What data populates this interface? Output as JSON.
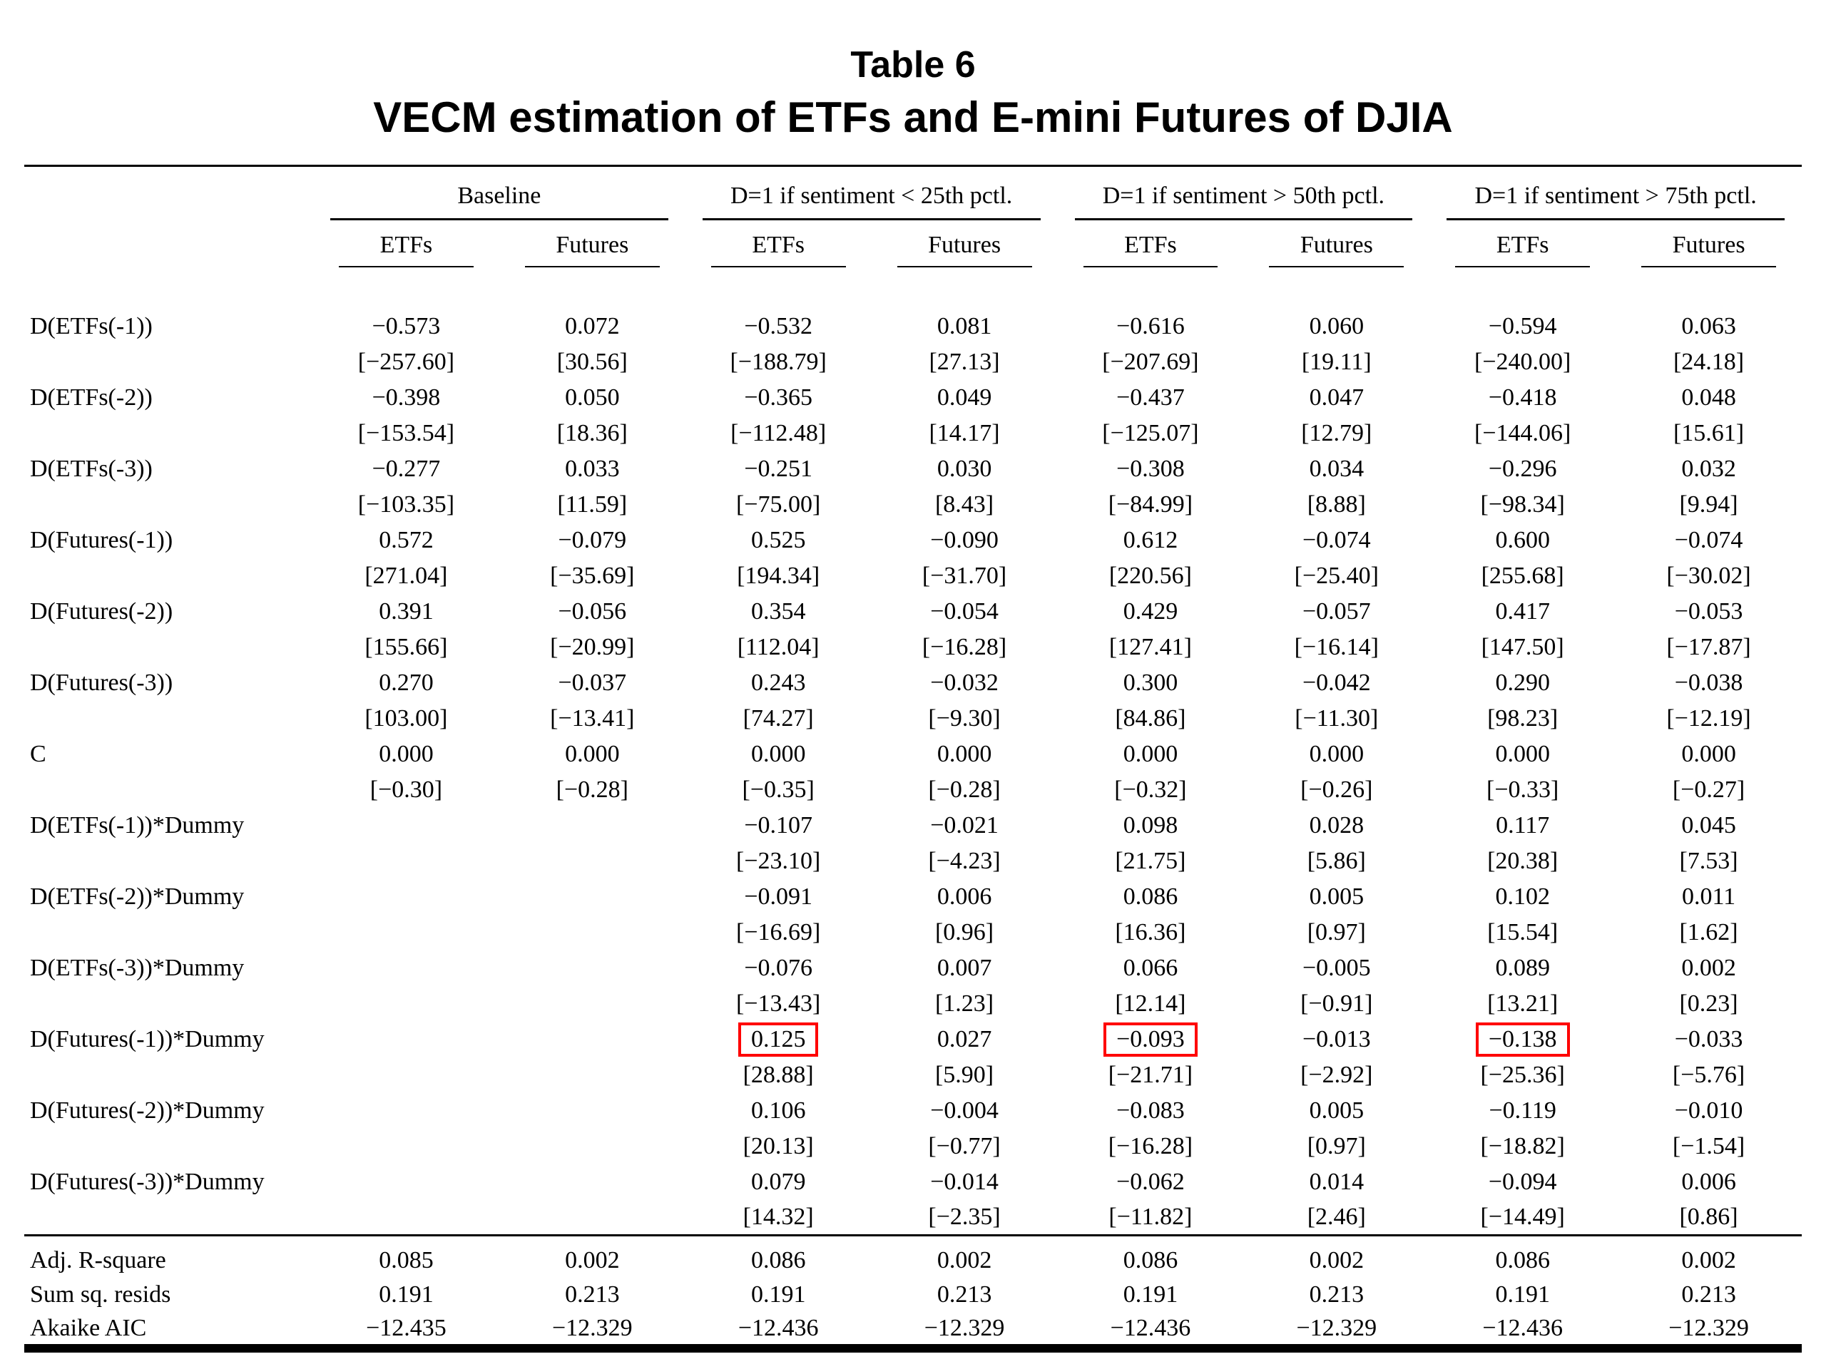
{
  "page": {
    "title_line1": "Table 6",
    "title_line2": "VECM estimation of ETFs and E-mini Futures of DJIA"
  },
  "table": {
    "groups": [
      "Baseline",
      "D=1 if sentiment < 25th pctl.",
      "D=1 if sentiment > 50th pctl.",
      "D=1 if sentiment > 75th pctl."
    ],
    "subheaders": [
      "ETFs",
      "Futures",
      "ETFs",
      "Futures",
      "ETFs",
      "Futures",
      "ETFs",
      "Futures"
    ],
    "highlight_color": "#ff0000",
    "rows": [
      {
        "label": "D(ETFs(-1))",
        "values": [
          "−0.573",
          "0.072",
          "−0.532",
          "0.081",
          "−0.616",
          "0.060",
          "−0.594",
          "0.063"
        ],
        "tstats": [
          "[−257.60]",
          "[30.56]",
          "[−188.79]",
          "[27.13]",
          "[−207.69]",
          "[19.11]",
          "[−240.00]",
          "[24.18]"
        ]
      },
      {
        "label": "D(ETFs(-2))",
        "values": [
          "−0.398",
          "0.050",
          "−0.365",
          "0.049",
          "−0.437",
          "0.047",
          "−0.418",
          "0.048"
        ],
        "tstats": [
          "[−153.54]",
          "[18.36]",
          "[−112.48]",
          "[14.17]",
          "[−125.07]",
          "[12.79]",
          "[−144.06]",
          "[15.61]"
        ]
      },
      {
        "label": "D(ETFs(-3))",
        "values": [
          "−0.277",
          "0.033",
          "−0.251",
          "0.030",
          "−0.308",
          "0.034",
          "−0.296",
          "0.032"
        ],
        "tstats": [
          "[−103.35]",
          "[11.59]",
          "[−75.00]",
          "[8.43]",
          "[−84.99]",
          "[8.88]",
          "[−98.34]",
          "[9.94]"
        ]
      },
      {
        "label": "D(Futures(-1))",
        "values": [
          "0.572",
          "−0.079",
          "0.525",
          "−0.090",
          "0.612",
          "−0.074",
          "0.600",
          "−0.074"
        ],
        "tstats": [
          "[271.04]",
          "[−35.69]",
          "[194.34]",
          "[−31.70]",
          "[220.56]",
          "[−25.40]",
          "[255.68]",
          "[−30.02]"
        ]
      },
      {
        "label": "D(Futures(-2))",
        "values": [
          "0.391",
          "−0.056",
          "0.354",
          "−0.054",
          "0.429",
          "−0.057",
          "0.417",
          "−0.053"
        ],
        "tstats": [
          "[155.66]",
          "[−20.99]",
          "[112.04]",
          "[−16.28]",
          "[127.41]",
          "[−16.14]",
          "[147.50]",
          "[−17.87]"
        ]
      },
      {
        "label": "D(Futures(-3))",
        "values": [
          "0.270",
          "−0.037",
          "0.243",
          "−0.032",
          "0.300",
          "−0.042",
          "0.290",
          "−0.038"
        ],
        "tstats": [
          "[103.00]",
          "[−13.41]",
          "[74.27]",
          "[−9.30]",
          "[84.86]",
          "[−11.30]",
          "[98.23]",
          "[−12.19]"
        ]
      },
      {
        "label": "C",
        "values": [
          "0.000",
          "0.000",
          "0.000",
          "0.000",
          "0.000",
          "0.000",
          "0.000",
          "0.000"
        ],
        "tstats": [
          "[−0.30]",
          "[−0.28]",
          "[−0.35]",
          "[−0.28]",
          "[−0.32]",
          "[−0.26]",
          "[−0.33]",
          "[−0.27]"
        ]
      },
      {
        "label": "D(ETFs(-1))*Dummy",
        "values": [
          "",
          "",
          "−0.107",
          "−0.021",
          "0.098",
          "0.028",
          "0.117",
          "0.045"
        ],
        "tstats": [
          "",
          "",
          "[−23.10]",
          "[−4.23]",
          "[21.75]",
          "[5.86]",
          "[20.38]",
          "[7.53]"
        ]
      },
      {
        "label": "D(ETFs(-2))*Dummy",
        "values": [
          "",
          "",
          "−0.091",
          "0.006",
          "0.086",
          "0.005",
          "0.102",
          "0.011"
        ],
        "tstats": [
          "",
          "",
          "[−16.69]",
          "[0.96]",
          "[16.36]",
          "[0.97]",
          "[15.54]",
          "[1.62]"
        ]
      },
      {
        "label": "D(ETFs(-3))*Dummy",
        "values": [
          "",
          "",
          "−0.076",
          "0.007",
          "0.066",
          "−0.005",
          "0.089",
          "0.002"
        ],
        "tstats": [
          "",
          "",
          "[−13.43]",
          "[1.23]",
          "[12.14]",
          "[−0.91]",
          "[13.21]",
          "[0.23]"
        ]
      },
      {
        "label": "D(Futures(-1))*Dummy",
        "values": [
          "",
          "",
          "0.125",
          "0.027",
          "−0.093",
          "−0.013",
          "−0.138",
          "−0.033"
        ],
        "highlight": [
          2,
          4,
          6
        ],
        "tstats": [
          "",
          "",
          "[28.88]",
          "[5.90]",
          "[−21.71]",
          "[−2.92]",
          "[−25.36]",
          "[−5.76]"
        ]
      },
      {
        "label": "D(Futures(-2))*Dummy",
        "values": [
          "",
          "",
          "0.106",
          "−0.004",
          "−0.083",
          "0.005",
          "−0.119",
          "−0.010"
        ],
        "tstats": [
          "",
          "",
          "[20.13]",
          "[−0.77]",
          "[−16.28]",
          "[0.97]",
          "[−18.82]",
          "[−1.54]"
        ]
      },
      {
        "label": "D(Futures(-3))*Dummy",
        "values": [
          "",
          "",
          "0.079",
          "−0.014",
          "−0.062",
          "0.014",
          "−0.094",
          "0.006"
        ],
        "tstats": [
          "",
          "",
          "[14.32]",
          "[−2.35]",
          "[−11.82]",
          "[2.46]",
          "[−14.49]",
          "[0.86]"
        ]
      }
    ],
    "stats": [
      {
        "label": "Adj. R-square",
        "values": [
          "0.085",
          "0.002",
          "0.086",
          "0.002",
          "0.086",
          "0.002",
          "0.086",
          "0.002"
        ]
      },
      {
        "label": "Sum sq. resids",
        "values": [
          "0.191",
          "0.213",
          "0.191",
          "0.213",
          "0.191",
          "0.213",
          "0.191",
          "0.213"
        ]
      },
      {
        "label": "Akaike AIC",
        "values": [
          "−12.435",
          "−12.329",
          "−12.436",
          "−12.329",
          "−12.436",
          "−12.329",
          "−12.436",
          "−12.329"
        ]
      }
    ]
  }
}
